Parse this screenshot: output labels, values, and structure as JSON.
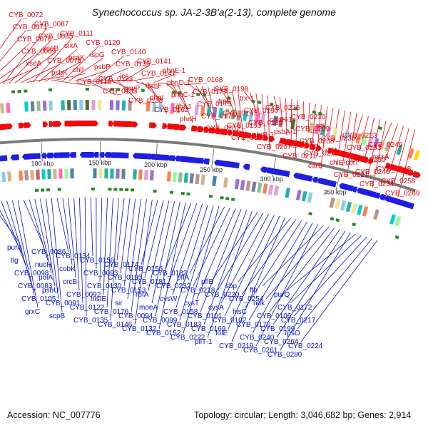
{
  "title": "Synechococcus sp. JA-2-3B'a(2-13), complete genome",
  "footer": {
    "accession": "Accession: NC_007776",
    "summary": "Topology: circular; Length: 3,046,682 bp; Genes: 2,914"
  },
  "colors": {
    "forward_labels": "#e8000b",
    "reverse_labels": "#0010d0",
    "backbone": "#7a7a7a"
  },
  "scale_ticks": [
    "100 kbp",
    "150 kbp",
    "200 kbp",
    "250 kbp",
    "300 kbp",
    "350 kbp"
  ],
  "forward_labels": [
    "CYB_0072",
    "CYB_0071",
    "CYB_0070",
    "CYB_0069",
    "xseA",
    "CYB_0087",
    "CYB_0085",
    "xseB",
    "CYB_0078",
    "psbK",
    "CYB_0111",
    "sixA",
    "psaK",
    "chlI",
    "CYB_0116",
    "CYB_0120",
    "ispG",
    "psbP",
    "CYB_0123",
    "CYB_0133",
    "CYB_0140",
    "CYB_0139",
    "icc",
    "gcvP",
    "CYB_0138",
    "CYB_0141",
    "CYB_0147",
    "rpmF",
    "phnI",
    "CYB_0162",
    "phnE-1",
    "phnD-1",
    "phnC-1",
    "phnJ",
    "phnH",
    "CYB_0168",
    "CYB_0177",
    "CYB_0175",
    "CYB_0179",
    "CYB_0201",
    "CYB_0198",
    "trpF",
    "CYB_0197",
    "CYB_0193",
    "CYB_0191",
    "trx-1",
    "CYB_0190",
    "CYB_0185",
    "phrB-1",
    "CYB_0207",
    "CYB_0226",
    "cobH-1",
    "psbA-1",
    "CYB_0214",
    "CYB_0211",
    "CYB_0210",
    "CYB_0209",
    "CYB_0208",
    "CYB_0212",
    "carB",
    "xth",
    "CYB_0230",
    "rsfA",
    "chlE/cbiT",
    "CYB_0221",
    "CYB_0223",
    "CYB_0233",
    "CYB_0250",
    "CYB_0246",
    "CYB_0234",
    "CYB_0249",
    "msrA",
    "CYB_0248",
    "CYB_0258",
    "CYB_0269"
  ],
  "reverse_labels": [
    "purA",
    "tig",
    "CYB_0098",
    "CYB_0083",
    "CYB_0105",
    "grxC",
    "CYB_0086",
    "nucH",
    "polA",
    "psbU",
    "CYB_0091",
    "scpB",
    "CYB_0134",
    "cobK",
    "crcB",
    "CYB_0092",
    "CYB_0122",
    "CYB_0135",
    "CYB_0156",
    "CYB_0093",
    "CYB_0130",
    "hisIE",
    "CYB_0176",
    "CYB_0146",
    "CYB_0174",
    "CYB_0195",
    "CYB_0153",
    "sir",
    "CYB_0094",
    "CYB_0132",
    "CYB_0155",
    "CYB_0181",
    "rbfA",
    "moeA",
    "CYB_0099",
    "CYB_0152",
    "CYB_0182",
    "CYB_0232",
    "cysW",
    "CYB_0158",
    "CYB_0183",
    "CYB_0222",
    "pflA",
    "CYB_0218",
    "cysT",
    "CYB_0101",
    "CYB_0169",
    "pilT-1",
    "pflB",
    "CYB_0220",
    "cysA",
    "CYB_0102",
    "folE",
    "CYB_0219",
    "sbp",
    "CYB_0254",
    "hisC",
    "CYB_0170",
    "CYB_0240",
    "CYB_0261",
    "ffh",
    "ndk",
    "CYB_0106",
    "CYB_0199",
    "CYB_0264",
    "CYB_0280",
    "purQ",
    "CYB_0172",
    "CYB_0217",
    "rpsO",
    "CYB_0224"
  ]
}
